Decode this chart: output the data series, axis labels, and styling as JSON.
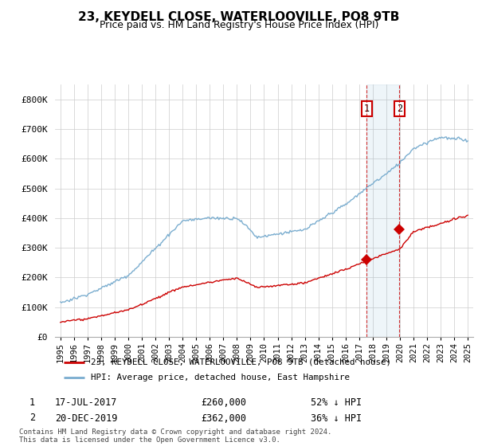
{
  "title": "23, KEYDELL CLOSE, WATERLOOVILLE, PO8 9TB",
  "subtitle": "Price paid vs. HM Land Registry's House Price Index (HPI)",
  "legend_label_red": "23, KEYDELL CLOSE, WATERLOOVILLE, PO8 9TB (detached house)",
  "legend_label_blue": "HPI: Average price, detached house, East Hampshire",
  "annotation1": {
    "num": "1",
    "date": "17-JUL-2017",
    "price": "£260,000",
    "pct": "52% ↓ HPI"
  },
  "annotation2": {
    "num": "2",
    "date": "20-DEC-2019",
    "price": "£362,000",
    "pct": "36% ↓ HPI"
  },
  "footer": "Contains HM Land Registry data © Crown copyright and database right 2024.\nThis data is licensed under the Open Government Licence v3.0.",
  "ylim": [
    0,
    850000
  ],
  "yticks": [
    0,
    100000,
    200000,
    300000,
    400000,
    500000,
    600000,
    700000,
    800000
  ],
  "ytick_labels": [
    "£0",
    "£100K",
    "£200K",
    "£300K",
    "£400K",
    "£500K",
    "£600K",
    "£700K",
    "£800K"
  ],
  "red_color": "#cc0000",
  "blue_color": "#7aadcf",
  "sale1_year": 2017.54,
  "sale1_price": 260000,
  "sale2_year": 2019.97,
  "sale2_price": 362000,
  "marker1_x": 2017.54,
  "marker1_y": 260000,
  "marker2_x": 2019.97,
  "marker2_y": 362000,
  "shaded_x1": 2017.54,
  "shaded_x2": 2019.97,
  "xlim_left": 1994.6,
  "xlim_right": 2025.4
}
